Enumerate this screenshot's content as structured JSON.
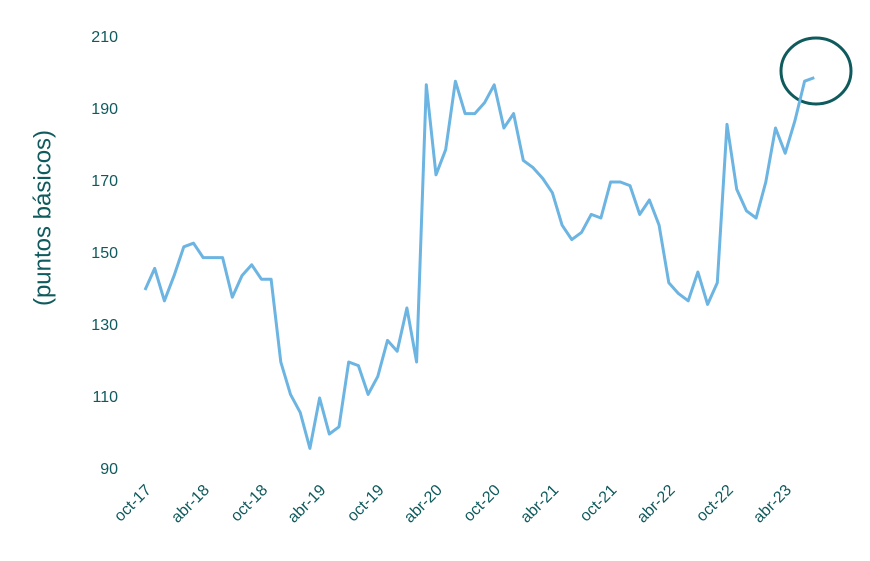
{
  "chart_data": {
    "type": "line",
    "y_label": "(puntos básicos)",
    "categories": [
      "oct-17",
      null,
      null,
      null,
      null,
      null,
      "abr-18",
      null,
      null,
      null,
      null,
      null,
      "oct-18",
      null,
      null,
      null,
      null,
      null,
      "abr-19",
      null,
      null,
      null,
      null,
      null,
      "oct-19",
      null,
      null,
      null,
      null,
      null,
      "abr-20",
      null,
      null,
      null,
      null,
      null,
      "oct-20",
      null,
      null,
      null,
      null,
      null,
      "abr-21",
      null,
      null,
      null,
      null,
      null,
      "oct-21",
      null,
      null,
      null,
      null,
      null,
      "abr-22",
      null,
      null,
      null,
      null,
      null,
      "oct-22",
      null,
      null,
      null,
      null,
      null,
      "abr-23",
      null,
      null,
      null
    ],
    "values": [
      140,
      146,
      137,
      144,
      152,
      153,
      149,
      149,
      149,
      138,
      144,
      147,
      143,
      143,
      120,
      111,
      106,
      96,
      110,
      100,
      102,
      120,
      119,
      111,
      116,
      126,
      123,
      135,
      120,
      197,
      172,
      179,
      198,
      189,
      189,
      192,
      197,
      185,
      189,
      176,
      174,
      171,
      167,
      158,
      154,
      156,
      161,
      160,
      170,
      170,
      169,
      161,
      165,
      158,
      142,
      139,
      137,
      145,
      136,
      142,
      186,
      168,
      162,
      160,
      170,
      185,
      178,
      187,
      198,
      199
    ],
    "color": "#6cb4e1",
    "ylim": [
      90,
      210
    ],
    "yticks": [
      90,
      110,
      130,
      150,
      170,
      190,
      210
    ],
    "grid": false
  }
}
